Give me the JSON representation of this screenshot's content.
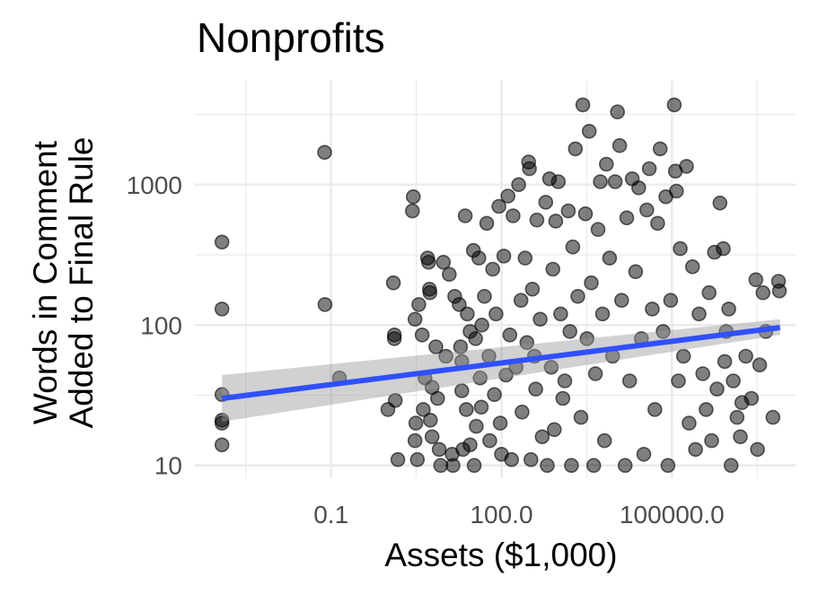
{
  "chart_data": {
    "type": "scatter",
    "title": "Nonprofits",
    "xlabel": "Assets ($1,000)",
    "ylabel_lines": [
      "Words in Comment",
      "Added to Final Rule"
    ],
    "x_scale": "log10",
    "y_scale": "log10",
    "xlim": [
      0.0004,
      15000000
    ],
    "ylim": [
      8.1,
      5500
    ],
    "x_ticks": [
      {
        "value": 0.1,
        "label": "0.1"
      },
      {
        "value": 100,
        "label": "100.0"
      },
      {
        "value": 100000,
        "label": "100000.0"
      }
    ],
    "y_ticks": [
      {
        "value": 10,
        "label": "10"
      },
      {
        "value": 100,
        "label": "100"
      },
      {
        "value": 1000,
        "label": "1000"
      }
    ],
    "grid": true,
    "legend": "none",
    "colors": {
      "points": "#000000",
      "fit_line": "#3050ff",
      "ci_band": "#999999",
      "grid": "#ebebeb"
    },
    "fit": {
      "method": "linear (log-log)",
      "x_range": [
        0.0012,
        8000000
      ],
      "line_y": [
        30,
        96
      ],
      "ci_low": [
        20.5,
        85
      ],
      "ci_high": [
        44,
        110
      ]
    },
    "points": [
      [
        0.0012,
        390
      ],
      [
        0.0012,
        130
      ],
      [
        0.0012,
        32
      ],
      [
        0.0012,
        21
      ],
      [
        0.0012,
        20
      ],
      [
        0.0012,
        14
      ],
      [
        0.077,
        1700
      ],
      [
        0.078,
        140
      ],
      [
        0.14,
        42
      ],
      [
        1.0,
        25
      ],
      [
        1.25,
        200
      ],
      [
        1.3,
        85
      ],
      [
        1.3,
        80
      ],
      [
        1.35,
        29
      ],
      [
        1.5,
        11
      ],
      [
        2.8,
        820
      ],
      [
        2.7,
        650
      ],
      [
        3.0,
        110
      ],
      [
        3.1,
        20
      ],
      [
        3.0,
        15
      ],
      [
        3.3,
        11
      ],
      [
        3.5,
        140
      ],
      [
        4.0,
        85
      ],
      [
        4.2,
        25
      ],
      [
        4.5,
        42
      ],
      [
        5.0,
        300
      ],
      [
        5.2,
        280
      ],
      [
        5.4,
        180
      ],
      [
        5.5,
        170
      ],
      [
        6.0,
        36
      ],
      [
        5.6,
        21
      ],
      [
        6.0,
        16
      ],
      [
        7.0,
        70
      ],
      [
        7.5,
        30
      ],
      [
        8.0,
        13
      ],
      [
        8.5,
        10
      ],
      [
        9.5,
        280
      ],
      [
        10.5,
        60
      ],
      [
        12.0,
        230
      ],
      [
        13.5,
        12
      ],
      [
        14.0,
        10
      ],
      [
        15.0,
        160
      ],
      [
        18.0,
        140
      ],
      [
        19.0,
        70
      ],
      [
        20.0,
        55
      ],
      [
        20.0,
        34
      ],
      [
        21.0,
        13
      ],
      [
        23.0,
        600
      ],
      [
        24.0,
        25
      ],
      [
        25.0,
        120
      ],
      [
        28.0,
        14
      ],
      [
        28.0,
        90
      ],
      [
        32.0,
        340
      ],
      [
        33.0,
        10
      ],
      [
        35.0,
        80
      ],
      [
        36.0,
        19
      ],
      [
        40.0,
        300
      ],
      [
        42.0,
        42
      ],
      [
        44.0,
        26
      ],
      [
        45.0,
        100
      ],
      [
        50.0,
        160
      ],
      [
        55.0,
        530
      ],
      [
        60.0,
        60
      ],
      [
        62.0,
        15
      ],
      [
        70.0,
        250
      ],
      [
        75.0,
        32
      ],
      [
        80.0,
        120
      ],
      [
        90.0,
        700
      ],
      [
        95.0,
        20
      ],
      [
        100.0,
        12
      ],
      [
        110.0,
        310
      ],
      [
        120.0,
        44
      ],
      [
        130.0,
        830
      ],
      [
        140.0,
        85
      ],
      [
        150.0,
        11
      ],
      [
        160.0,
        600
      ],
      [
        180.0,
        50
      ],
      [
        200.0,
        1000
      ],
      [
        220.0,
        150
      ],
      [
        230.0,
        24
      ],
      [
        260.0,
        300
      ],
      [
        280.0,
        75
      ],
      [
        300.0,
        1450
      ],
      [
        310.0,
        1300
      ],
      [
        330.0,
        11
      ],
      [
        350.0,
        180
      ],
      [
        380.0,
        60
      ],
      [
        400.0,
        35
      ],
      [
        420.0,
        560
      ],
      [
        480.0,
        110
      ],
      [
        520.0,
        16
      ],
      [
        600.0,
        750
      ],
      [
        640.0,
        10
      ],
      [
        700.0,
        1100
      ],
      [
        750.0,
        50
      ],
      [
        800.0,
        250
      ],
      [
        850.0,
        18
      ],
      [
        900.0,
        550
      ],
      [
        1000.0,
        1050
      ],
      [
        1100.0,
        120
      ],
      [
        1200.0,
        30
      ],
      [
        1300.0,
        40
      ],
      [
        1500.0,
        650
      ],
      [
        1600.0,
        90
      ],
      [
        1700.0,
        10
      ],
      [
        1800.0,
        360
      ],
      [
        2000.0,
        1800
      ],
      [
        2200.0,
        160
      ],
      [
        2500.0,
        22
      ],
      [
        2700.0,
        3700
      ],
      [
        3000.0,
        620
      ],
      [
        3200.0,
        80
      ],
      [
        3500.0,
        2400
      ],
      [
        3800.0,
        200
      ],
      [
        4200.0,
        10
      ],
      [
        4500.0,
        45
      ],
      [
        5000.0,
        480
      ],
      [
        5500.0,
        1050
      ],
      [
        6000.0,
        120
      ],
      [
        6500.0,
        15
      ],
      [
        7000.0,
        1400
      ],
      [
        8000.0,
        300
      ],
      [
        9000.0,
        60
      ],
      [
        10000.0,
        1050
      ],
      [
        11000.0,
        3300
      ],
      [
        12000.0,
        1900
      ],
      [
        13000.0,
        150
      ],
      [
        15000.0,
        10
      ],
      [
        16000.0,
        580
      ],
      [
        18000.0,
        40
      ],
      [
        20000.0,
        1100
      ],
      [
        23000.0,
        240
      ],
      [
        26000.0,
        950
      ],
      [
        29000.0,
        80
      ],
      [
        32000.0,
        12
      ],
      [
        36000.0,
        660
      ],
      [
        40000.0,
        1300
      ],
      [
        45000.0,
        130
      ],
      [
        50000.0,
        25
      ],
      [
        56000.0,
        530
      ],
      [
        62000.0,
        1800
      ],
      [
        70000.0,
        90
      ],
      [
        78000.0,
        820
      ],
      [
        85000.0,
        10
      ],
      [
        95000.0,
        150
      ],
      [
        110000.0,
        3700
      ],
      [
        115000.0,
        1250
      ],
      [
        120000.0,
        900
      ],
      [
        130000.0,
        40
      ],
      [
        140000.0,
        350
      ],
      [
        160000.0,
        60
      ],
      [
        180000.0,
        1350
      ],
      [
        200000.0,
        20
      ],
      [
        230000.0,
        260
      ],
      [
        260000.0,
        13
      ],
      [
        300000.0,
        120
      ],
      [
        350000.0,
        45
      ],
      [
        400000.0,
        25
      ],
      [
        450000.0,
        170
      ],
      [
        500000.0,
        15
      ],
      [
        560000.0,
        330
      ],
      [
        620000.0,
        35
      ],
      [
        700000.0,
        740
      ],
      [
        800000.0,
        350
      ],
      [
        850000.0,
        55
      ],
      [
        900000.0,
        90
      ],
      [
        1000000.0,
        130
      ],
      [
        1100000.0,
        10
      ],
      [
        1200000.0,
        40
      ],
      [
        1400000.0,
        22
      ],
      [
        1600000.0,
        16
      ],
      [
        1700000.0,
        28
      ],
      [
        2000000.0,
        60
      ],
      [
        2500000.0,
        30
      ],
      [
        3000000.0,
        210
      ],
      [
        3200000.0,
        13
      ],
      [
        3500000.0,
        52
      ],
      [
        4000000.0,
        170
      ],
      [
        4500000.0,
        90
      ],
      [
        6000000.0,
        22
      ],
      [
        7500000.0,
        205
      ],
      [
        7800000.0,
        175
      ]
    ]
  }
}
